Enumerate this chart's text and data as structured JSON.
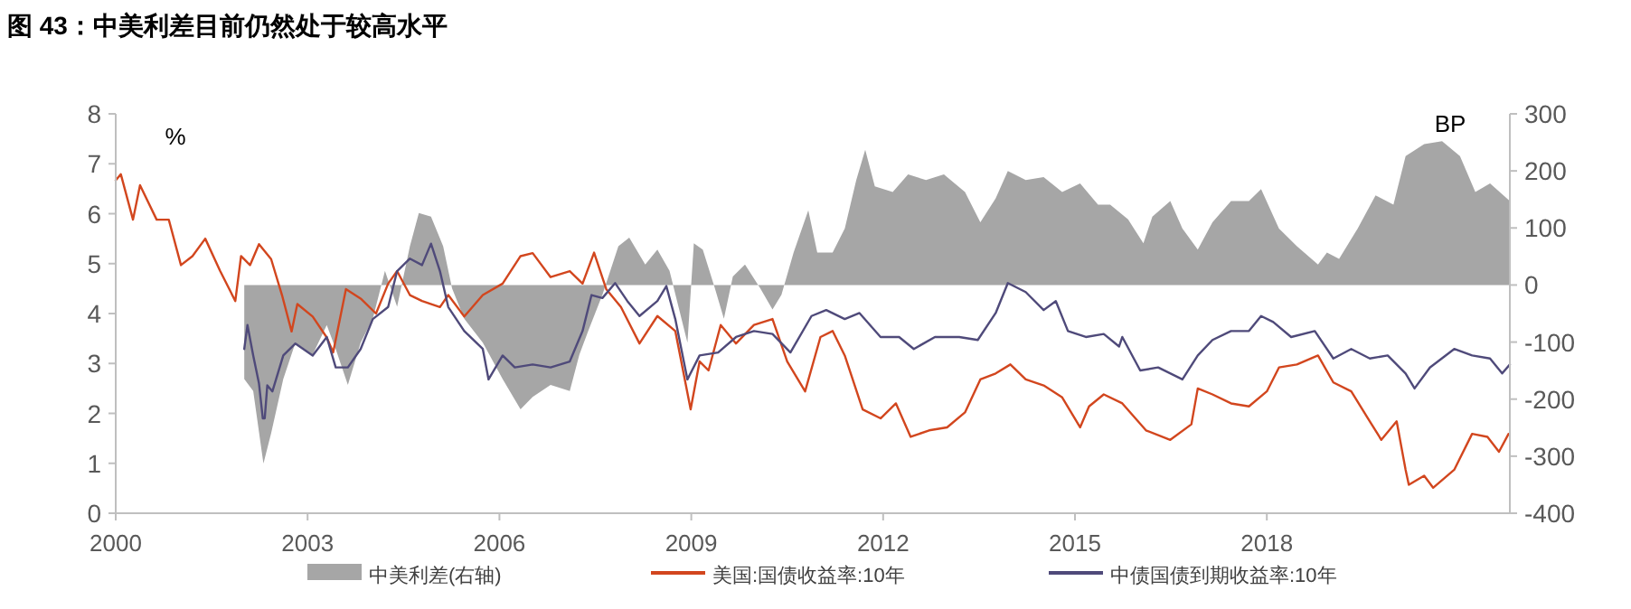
{
  "chart_data": {
    "type": "line",
    "title": "图 43：中美利差目前仍然处于较高水平",
    "ylabel": "%",
    "y2label": "BP",
    "xlim": [
      2000,
      2021.8
    ],
    "xticks": [
      2000,
      2003,
      2006,
      2009,
      2012,
      2015,
      2018
    ],
    "ylim": [
      0,
      8
    ],
    "yticks": [
      0,
      1,
      2,
      3,
      4,
      5,
      6,
      7,
      8
    ],
    "y2lim": [
      -400,
      300
    ],
    "y2ticks": [
      -400,
      -300,
      -200,
      -100,
      0,
      100,
      200,
      300
    ],
    "legend": "bottom",
    "grid": false,
    "series": [
      {
        "name": "中美利差(右轴)",
        "type": "area",
        "axis": "y2",
        "color": "#a6a6a6",
        "x": [
          2002.01,
          2002.15,
          2002.31,
          2002.43,
          2002.62,
          2002.81,
          2003.08,
          2003.3,
          2003.44,
          2003.63,
          2003.83,
          2004.02,
          2004.21,
          2004.4,
          2004.6,
          2004.74,
          2004.93,
          2005.12,
          2005.26,
          2005.45,
          2005.74,
          2006.05,
          2006.33,
          2006.52,
          2006.8,
          2007.1,
          2007.25,
          2007.39,
          2007.61,
          2007.86,
          2008.03,
          2008.28,
          2008.47,
          2008.66,
          2008.8,
          2008.94,
          2009.04,
          2009.18,
          2009.37,
          2009.51,
          2009.65,
          2009.84,
          2010.08,
          2010.27,
          2010.41,
          2010.6,
          2010.83,
          2010.97,
          2011.21,
          2011.4,
          2011.58,
          2011.72,
          2011.87,
          2012.15,
          2012.39,
          2012.67,
          2012.95,
          2013.28,
          2013.52,
          2013.76,
          2013.95,
          2014.23,
          2014.51,
          2014.8,
          2015.08,
          2015.36,
          2015.55,
          2015.83,
          2016.07,
          2016.21,
          2016.49,
          2016.68,
          2016.92,
          2017.15,
          2017.44,
          2017.72,
          2017.91,
          2018.19,
          2018.47,
          2018.8,
          2018.94,
          2019.13,
          2019.42,
          2019.7,
          2019.98,
          2020.17,
          2020.46,
          2020.74,
          2021.02,
          2021.26,
          2021.49,
          2021.8
        ],
        "values": [
          -165,
          -186,
          -313,
          -260,
          -165,
          -101,
          -122,
          -70,
          -112,
          -175,
          -101,
          -59,
          25,
          -38,
          68,
          126,
          120,
          68,
          -6,
          -59,
          -101,
          -165,
          -218,
          -196,
          -175,
          -186,
          -122,
          -80,
          -17,
          68,
          83,
          36,
          62,
          25,
          -38,
          -101,
          73,
          62,
          -6,
          -59,
          15,
          36,
          -6,
          -43,
          -17,
          57,
          131,
          57,
          57,
          99,
          184,
          237,
          173,
          163,
          194,
          184,
          194,
          163,
          110,
          152,
          200,
          184,
          189,
          163,
          178,
          141,
          141,
          115,
          73,
          120,
          147,
          99,
          62,
          110,
          147,
          147,
          168,
          99,
          68,
          36,
          57,
          46,
          99,
          157,
          141,
          226,
          247,
          252,
          226,
          163,
          178,
          147
        ]
      },
      {
        "name": "美国:国债收益率:10年",
        "type": "line",
        "color": "#d2461e",
        "x": [
          2000,
          2000.08,
          2000.27,
          2000.38,
          2000.64,
          2000.83,
          2001.02,
          2001.2,
          2001.4,
          2001.63,
          2001.87,
          2001.96,
          2002.1,
          2002.24,
          2002.43,
          2002.6,
          2002.75,
          2002.84,
          2003.08,
          2003.3,
          2003.4,
          2003.6,
          2003.83,
          2004.07,
          2004.26,
          2004.4,
          2004.6,
          2004.79,
          2005.07,
          2005.2,
          2005.45,
          2005.74,
          2006.05,
          2006.33,
          2006.52,
          2006.8,
          2007.1,
          2007.3,
          2007.48,
          2007.67,
          2007.9,
          2008.19,
          2008.47,
          2008.75,
          2008.99,
          2009.13,
          2009.27,
          2009.46,
          2009.7,
          2009.98,
          2010.27,
          2010.5,
          2010.78,
          2011.02,
          2011.21,
          2011.4,
          2011.68,
          2011.96,
          2012.2,
          2012.43,
          2012.72,
          2013.0,
          2013.28,
          2013.52,
          2013.76,
          2013.99,
          2014.23,
          2014.51,
          2014.8,
          2015.08,
          2015.22,
          2015.45,
          2015.74,
          2016.11,
          2016.49,
          2016.82,
          2016.92,
          2017.15,
          2017.44,
          2017.72,
          2018.0,
          2018.19,
          2018.47,
          2018.8,
          2019.04,
          2019.32,
          2019.61,
          2019.79,
          2020.03,
          2020.17,
          2020.22,
          2020.46,
          2020.6,
          2020.93,
          2021.21,
          2021.45,
          2021.63,
          2021.78
        ],
        "values": [
          6.67,
          6.79,
          5.88,
          6.57,
          5.88,
          5.88,
          4.97,
          5.15,
          5.5,
          4.86,
          4.25,
          5.15,
          4.97,
          5.39,
          5.09,
          4.37,
          3.64,
          4.19,
          3.94,
          3.52,
          3.22,
          4.49,
          4.3,
          4.0,
          4.6,
          4.85,
          4.37,
          4.25,
          4.13,
          4.37,
          3.94,
          4.37,
          4.6,
          5.15,
          5.21,
          4.73,
          4.85,
          4.6,
          5.22,
          4.49,
          4.13,
          3.4,
          3.95,
          3.65,
          2.08,
          3.04,
          2.86,
          3.77,
          3.4,
          3.77,
          3.89,
          3.04,
          2.44,
          3.53,
          3.65,
          3.16,
          2.08,
          1.9,
          2.2,
          1.53,
          1.66,
          1.72,
          2.02,
          2.68,
          2.8,
          2.98,
          2.68,
          2.56,
          2.32,
          1.72,
          2.14,
          2.38,
          2.2,
          1.66,
          1.47,
          1.78,
          2.5,
          2.38,
          2.2,
          2.14,
          2.44,
          2.92,
          2.98,
          3.16,
          2.62,
          2.44,
          1.84,
          1.47,
          1.84,
          0.87,
          0.57,
          0.75,
          0.51,
          0.87,
          1.59,
          1.53,
          1.23,
          1.59
        ]
      },
      {
        "name": "中债国债到期收益率:10年",
        "type": "line",
        "color": "#4f4a7a",
        "x": [
          2002.01,
          2002.06,
          2002.15,
          2002.24,
          2002.3,
          2002.33,
          2002.37,
          2002.45,
          2002.62,
          2002.81,
          2003.08,
          2003.3,
          2003.44,
          2003.63,
          2003.83,
          2004.02,
          2004.26,
          2004.4,
          2004.6,
          2004.79,
          2004.93,
          2005.07,
          2005.2,
          2005.45,
          2005.74,
          2005.83,
          2006.05,
          2006.24,
          2006.52,
          2006.8,
          2007.1,
          2007.3,
          2007.44,
          2007.61,
          2007.81,
          2008.0,
          2008.19,
          2008.47,
          2008.61,
          2008.75,
          2008.94,
          2009.13,
          2009.42,
          2009.7,
          2009.98,
          2010.27,
          2010.55,
          2010.88,
          2011.11,
          2011.4,
          2011.63,
          2011.96,
          2012.25,
          2012.48,
          2012.81,
          2013.19,
          2013.48,
          2013.76,
          2013.95,
          2014.23,
          2014.51,
          2014.7,
          2014.89,
          2015.17,
          2015.45,
          2015.69,
          2015.74,
          2016.02,
          2016.3,
          2016.68,
          2016.92,
          2017.15,
          2017.44,
          2017.72,
          2017.91,
          2018.1,
          2018.38,
          2018.75,
          2019.04,
          2019.32,
          2019.61,
          2019.89,
          2020.17,
          2020.31,
          2020.55,
          2020.93,
          2021.21,
          2021.49,
          2021.68,
          2021.8
        ],
        "values": [
          3.29,
          3.77,
          3.16,
          2.6,
          1.9,
          1.9,
          2.56,
          2.44,
          3.16,
          3.4,
          3.16,
          3.53,
          2.92,
          2.92,
          3.29,
          3.89,
          4.13,
          4.85,
          5.1,
          4.97,
          5.4,
          4.85,
          4.13,
          3.65,
          3.29,
          2.68,
          3.16,
          2.92,
          2.98,
          2.92,
          3.04,
          3.65,
          4.37,
          4.31,
          4.61,
          4.25,
          3.95,
          4.25,
          4.55,
          3.89,
          2.68,
          3.16,
          3.22,
          3.53,
          3.65,
          3.59,
          3.22,
          3.95,
          4.07,
          3.89,
          4.01,
          3.53,
          3.53,
          3.29,
          3.53,
          3.53,
          3.47,
          4.01,
          4.61,
          4.43,
          4.07,
          4.25,
          3.65,
          3.53,
          3.59,
          3.34,
          3.53,
          2.86,
          2.92,
          2.68,
          3.16,
          3.47,
          3.65,
          3.65,
          3.95,
          3.83,
          3.53,
          3.65,
          3.1,
          3.29,
          3.1,
          3.16,
          2.8,
          2.5,
          2.92,
          3.29,
          3.16,
          3.1,
          2.8,
          2.98
        ]
      }
    ]
  }
}
